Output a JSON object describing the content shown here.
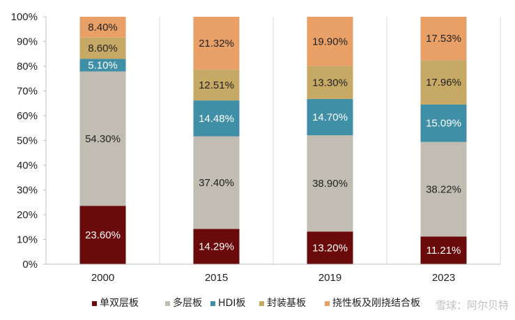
{
  "chart_data": {
    "type": "bar",
    "stacked": true,
    "percent": true,
    "categories": [
      "2000",
      "2015",
      "2019",
      "2023"
    ],
    "ylim": [
      0,
      100
    ],
    "yticks": [
      "0%",
      "10%",
      "20%",
      "30%",
      "40%",
      "50%",
      "60%",
      "70%",
      "80%",
      "90%",
      "100%"
    ],
    "grid": false,
    "legend_position": "bottom",
    "series": [
      {
        "name": "单双层板",
        "color": "#6b0a0a",
        "label_color": "#ffffff",
        "values": [
          23.6,
          14.29,
          13.2,
          11.21
        ],
        "labels": [
          "23.60%",
          "14.29%",
          "13.20%",
          "11.21%"
        ]
      },
      {
        "name": "多层板",
        "color": "#c1bdb2",
        "label_color": "#222222",
        "values": [
          54.3,
          37.4,
          38.9,
          38.22
        ],
        "labels": [
          "54.30%",
          "37.40%",
          "38.90%",
          "38.22%"
        ]
      },
      {
        "name": "HDI板",
        "color": "#3f8fa6",
        "label_color": "#ffffff",
        "values": [
          5.1,
          14.48,
          14.7,
          15.09
        ],
        "labels": [
          "5.10%",
          "14.48%",
          "14.70%",
          "15.09%"
        ]
      },
      {
        "name": "封装基板",
        "color": "#c7a966",
        "label_color": "#222222",
        "values": [
          8.6,
          12.51,
          13.3,
          17.96
        ],
        "labels": [
          "8.60%",
          "12.51%",
          "13.30%",
          "17.96%"
        ]
      },
      {
        "name": "挠性板及刚挠结合板",
        "color": "#e9a067",
        "label_color": "#222222",
        "values": [
          8.4,
          21.32,
          19.9,
          17.53
        ],
        "labels": [
          "8.40%",
          "21.32%",
          "19.90%",
          "17.53%"
        ]
      }
    ]
  },
  "watermark": "雪球：阿尔贝特"
}
